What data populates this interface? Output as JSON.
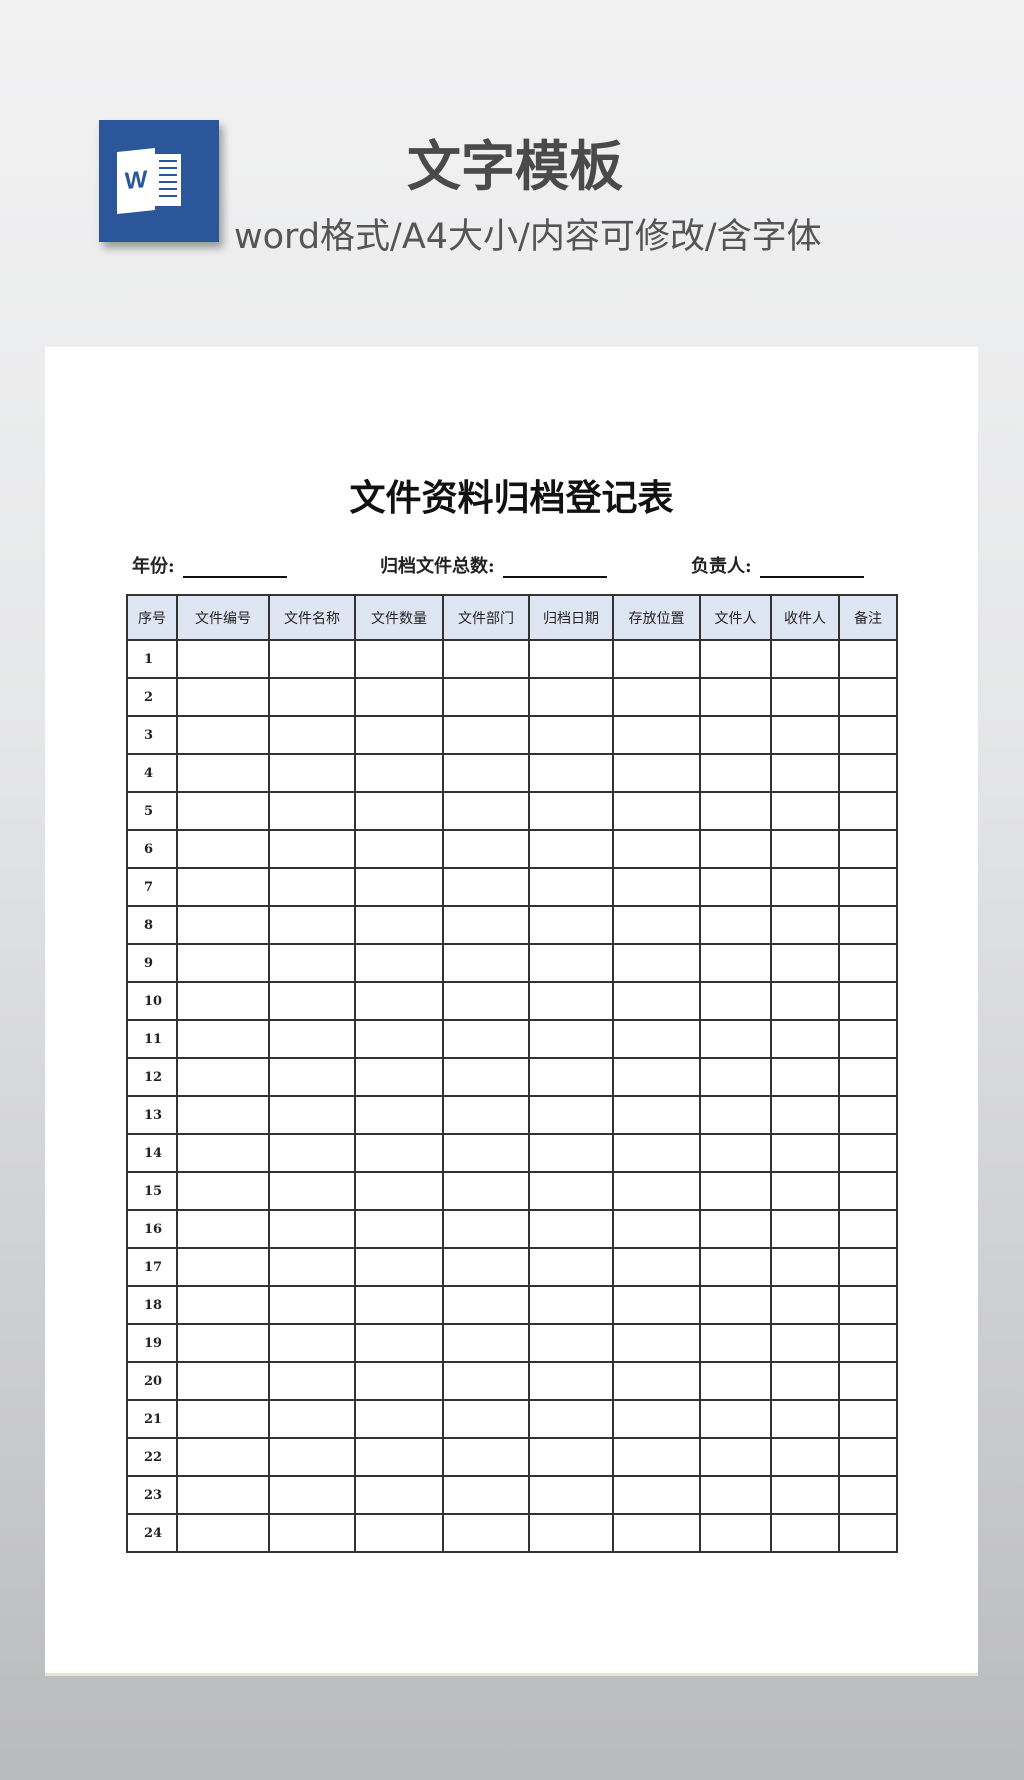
{
  "banner": {
    "title": "文字模板",
    "subtitle": "word格式/A4大小/内容可修改/含字体",
    "icon": "word-icon",
    "icon_letter": "W"
  },
  "document": {
    "title": "文件资料归档登记表",
    "fields": [
      {
        "label": "年份:"
      },
      {
        "label": "归档文件总数:"
      },
      {
        "label": "负责人:"
      }
    ],
    "columns": [
      "序号",
      "文件编号",
      "文件名称",
      "文件数量",
      "文件部门",
      "归档日期",
      "存放位置",
      "文件人",
      "收件人",
      "备注"
    ],
    "rows": [
      "1",
      "2",
      "3",
      "4",
      "5",
      "6",
      "7",
      "8",
      "9",
      "10",
      "11",
      "12",
      "13",
      "14",
      "15",
      "16",
      "17",
      "18",
      "19",
      "20",
      "21",
      "22",
      "23",
      "24"
    ]
  },
  "colors": {
    "word_blue": "#2b579a",
    "header_fill": "#dfe6f3"
  }
}
